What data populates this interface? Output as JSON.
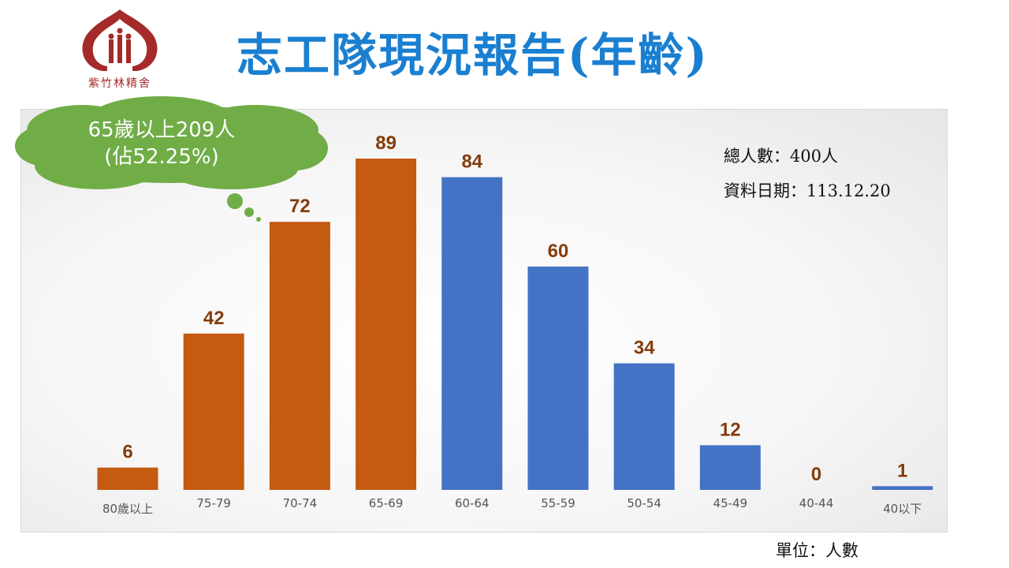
{
  "header": {
    "title": "志工隊現況報告(年齡)",
    "logo_text": "紫竹林精舍"
  },
  "info": {
    "total": "總人數：400人",
    "date": "資料日期：113.12.20",
    "unit": "單位：人數"
  },
  "callout": {
    "line1": "65歲以上209人",
    "line2": "(佔52.25%)"
  },
  "colors": {
    "orange": "#c55a11",
    "blue": "#4472c4",
    "label": "#843c0c",
    "title": "#1a7fd0",
    "callout_green": "#70ad47",
    "logo_red": "#a52a2a"
  },
  "chart_data": {
    "type": "bar",
    "categories": [
      "80歲以上",
      "75-79",
      "70-74",
      "65-69",
      "60-64",
      "55-59",
      "50-54",
      "45-49",
      "40-44",
      "40以下"
    ],
    "values": [
      6,
      42,
      72,
      89,
      84,
      60,
      34,
      12,
      0,
      1
    ],
    "bar_colors": [
      "orange",
      "orange",
      "orange",
      "orange",
      "blue",
      "blue",
      "blue",
      "blue",
      "blue",
      "blue"
    ],
    "ylim": [
      0,
      100
    ],
    "grid": false,
    "data_labels": true
  }
}
